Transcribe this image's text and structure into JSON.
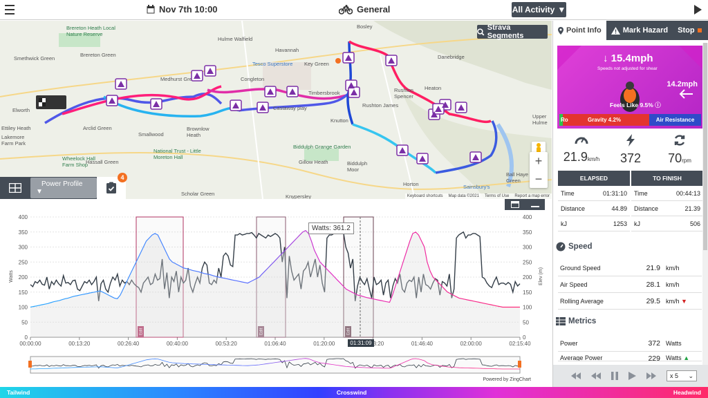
{
  "topbar": {
    "date": "Nov 7th 10:00",
    "activity": "General",
    "filter": "All Activity"
  },
  "map": {
    "strava_button": "Strava Segments",
    "places": [
      {
        "t": "Brereton Heath Local Nature Reserve",
        "c": "green"
      },
      {
        "t": "Brereton Green",
        "c": ""
      },
      {
        "t": "Smethwick Green",
        "c": ""
      },
      {
        "t": "Hulme Walfield",
        "c": ""
      },
      {
        "t": "Havannah",
        "c": ""
      },
      {
        "t": "Medhurst Green",
        "c": ""
      },
      {
        "t": "Congleton",
        "c": ""
      },
      {
        "t": "Tesco Superstore",
        "c": "blue"
      },
      {
        "t": "Key Green",
        "c": ""
      },
      {
        "t": "Bosley",
        "c": ""
      },
      {
        "t": "Danebridge",
        "c": ""
      },
      {
        "t": "Timbersbrook",
        "c": ""
      },
      {
        "t": "Heaton",
        "c": ""
      },
      {
        "t": "Rushton Spencer",
        "c": ""
      },
      {
        "t": "Castaway play",
        "c": ""
      },
      {
        "t": "Rushton James",
        "c": ""
      },
      {
        "t": "Elworth",
        "c": ""
      },
      {
        "t": "Ettiley Heath",
        "c": ""
      },
      {
        "t": "Lakemore Farm Park",
        "c": ""
      },
      {
        "t": "Arclid Green",
        "c": ""
      },
      {
        "t": "Brownlow Heath",
        "c": ""
      },
      {
        "t": "Biddulph Grange Garden",
        "c": "green"
      },
      {
        "t": "National Trust - Little Moreton Hall",
        "c": "green"
      },
      {
        "t": "Wheelock Hall Farm Shop",
        "c": "green"
      },
      {
        "t": "Hassall Green",
        "c": ""
      },
      {
        "t": "Gillow Heath",
        "c": ""
      },
      {
        "t": "Biddulph Moor",
        "c": ""
      },
      {
        "t": "Knypersley",
        "c": ""
      },
      {
        "t": "Horton",
        "c": ""
      },
      {
        "t": "Sainsbury's",
        "c": "blue"
      },
      {
        "t": "Ball Haye Green",
        "c": ""
      },
      {
        "t": "Upper Hulme",
        "c": ""
      },
      {
        "t": "Scholar Green",
        "c": ""
      },
      {
        "t": "Smallwood",
        "c": ""
      },
      {
        "t": "Knutton",
        "c": ""
      }
    ],
    "footer": [
      "Keyboard shortcuts",
      "Map data ©2021",
      "Terms of Use",
      "Report a map error"
    ],
    "profile_select": "Power Profile",
    "notifications": "4"
  },
  "chart": {
    "tooltip": "Watts: 361.2",
    "cursor_time": "01:31:09",
    "powered_by": "Powered by ZingChart",
    "ylabel_left": "Watts",
    "ylabel_right": "Elev (m)",
    "edit_label": "Edit"
  },
  "chart_data": {
    "type": "line",
    "x_ticks": [
      "00:00:00",
      "00:13:20",
      "00:26:40",
      "00:40:00",
      "00:53:20",
      "01:06:40",
      "01:20:00",
      "01:33:20",
      "01:46:40",
      "02:00:00",
      "02:15:40"
    ],
    "y_left_ticks": [
      "400",
      "350",
      "300",
      "250",
      "200",
      "150",
      "100",
      "50",
      "0"
    ],
    "y_right_ticks": [
      "400",
      "350",
      "300",
      "250",
      "200",
      "150",
      "100",
      "50",
      "0"
    ],
    "ylim": [
      0,
      400
    ],
    "series": [
      {
        "name": "Watts",
        "color": "#333d47",
        "values": [
          175,
          168,
          185,
          180,
          190,
          176,
          173,
          200,
          160,
          185,
          175,
          190,
          178,
          170,
          205,
          180,
          182,
          175,
          188,
          190,
          160,
          155,
          170,
          185,
          180,
          190,
          175,
          185,
          200,
          120,
          178,
          190,
          160,
          150,
          180,
          200,
          190,
          210,
          170,
          190,
          180,
          185,
          175,
          190,
          178,
          170,
          165,
          150,
          180,
          190,
          200,
          175,
          180,
          210,
          190,
          195,
          260,
          160,
          215,
          130,
          200,
          185,
          220,
          150,
          200,
          180,
          190,
          230,
          170,
          150,
          178,
          200,
          180,
          230,
          250,
          240,
          180,
          175,
          190,
          180,
          230,
          200,
          270,
          280,
          270,
          240,
          235,
          340,
          340,
          345,
          340,
          342,
          345,
          345,
          348,
          340,
          330,
          345,
          340,
          335,
          330,
          340,
          335,
          340,
          345,
          340,
          330,
          250,
          300,
          130,
          270,
          220,
          190,
          200,
          210,
          160,
          220,
          230,
          250,
          200,
          230,
          260,
          200,
          240,
          180,
          150,
          330,
          340,
          340,
          345,
          350,
          350,
          345,
          350,
          300,
          280,
          230,
          260,
          120,
          170,
          200,
          185,
          175,
          195,
          160,
          130,
          200,
          175,
          180,
          190,
          140,
          180,
          190,
          130,
          170,
          195,
          180,
          210,
          160,
          150,
          180,
          190,
          185,
          200,
          130,
          200,
          150,
          210,
          175,
          170,
          160,
          180,
          195,
          190,
          140,
          185,
          180,
          170,
          210,
          130,
          160,
          330,
          340,
          345,
          350,
          330,
          340,
          340,
          345,
          345,
          340,
          335,
          200,
          195,
          180,
          170,
          165,
          185,
          200,
          175,
          180,
          180,
          175,
          182,
          176,
          150,
          185,
          170,
          178
        ]
      },
      {
        "name": "Elevation",
        "color": "#1ea3e8",
        "values": [
          100,
          102,
          104,
          106,
          108,
          110,
          112,
          115,
          118,
          120,
          122,
          125,
          128,
          130,
          133,
          136,
          138,
          140,
          142,
          144,
          146,
          148,
          150,
          152,
          154,
          150,
          145,
          140,
          135,
          130,
          128,
          140,
          160,
          180,
          200,
          220,
          240,
          260,
          280,
          300,
          320,
          330,
          340,
          345,
          340,
          320,
          300,
          280,
          260,
          250,
          245,
          240,
          235,
          230,
          228,
          225,
          222,
          220,
          218,
          215,
          212,
          210,
          208,
          205,
          202,
          200,
          198,
          196,
          194,
          192,
          190,
          188,
          186,
          184,
          182,
          180,
          185,
          190,
          195,
          200,
          210,
          220,
          230,
          240,
          250,
          260,
          270,
          280,
          290,
          300,
          310,
          320,
          330,
          340,
          350,
          355,
          345,
          320,
          290,
          270,
          250,
          240,
          230,
          220,
          210,
          200,
          190,
          180,
          170,
          160,
          155,
          150,
          145,
          140,
          138,
          135,
          132,
          130,
          128,
          126,
          124,
          122,
          120,
          118,
          116,
          140,
          170,
          200,
          230,
          260,
          290,
          320,
          345,
          350,
          340,
          320,
          300,
          250,
          220,
          200,
          190,
          180,
          170,
          160,
          150,
          145,
          140,
          135,
          130,
          128,
          126,
          124,
          122,
          120,
          118,
          116,
          114,
          112,
          110,
          108,
          106,
          104,
          102,
          100,
          100,
          100,
          100,
          100,
          100,
          100
        ]
      }
    ]
  },
  "sidebar": {
    "tabs": [
      "Point Info",
      "Mark Hazard",
      "Stop"
    ],
    "hero": {
      "speed": "15.4mph",
      "note": "Speeds not adjusted for shear",
      "wind": "14.2mph",
      "feels": "Feels Like 9.5%",
      "gravity": "Gravity 4.2%",
      "gravity_left": "Ro",
      "air": "Air Resistance"
    },
    "stats": [
      {
        "icon": "speedometer-icon",
        "value": "21.9",
        "unit": "km/h"
      },
      {
        "icon": "lightning-icon",
        "value": "372",
        "unit": ""
      },
      {
        "icon": "cadence-icon",
        "value": "70",
        "unit": "rpm"
      }
    ],
    "table": {
      "headers": [
        "ELAPSED",
        "TO FINISH"
      ],
      "rows": [
        [
          "Time",
          "01:31:10",
          "Time",
          "00:44:13"
        ],
        [
          "Distance",
          "44.89",
          "Distance",
          "21.39"
        ],
        [
          "kJ",
          "1253",
          "kJ",
          "506"
        ]
      ]
    },
    "speed_title": "Speed",
    "speed_rows": [
      {
        "k": "Ground Speed",
        "v": "21.9",
        "u": "km/h",
        "trend": ""
      },
      {
        "k": "Air Speed",
        "v": "28.1",
        "u": "km/h",
        "trend": ""
      },
      {
        "k": "Rolling Average",
        "v": "29.5",
        "u": "km/h",
        "trend": "▼"
      }
    ],
    "metrics_title": "Metrics",
    "metrics_rows": [
      {
        "k": "Power",
        "v": "372",
        "u": "Watts",
        "trend": ""
      },
      {
        "k": "Average Power",
        "v": "229",
        "u": "Watts",
        "trend": "▲"
      }
    ],
    "playback_speed": "x 5"
  },
  "windbar": {
    "left": "Tailwind",
    "mid": "Crosswind",
    "right": "Headwind"
  }
}
